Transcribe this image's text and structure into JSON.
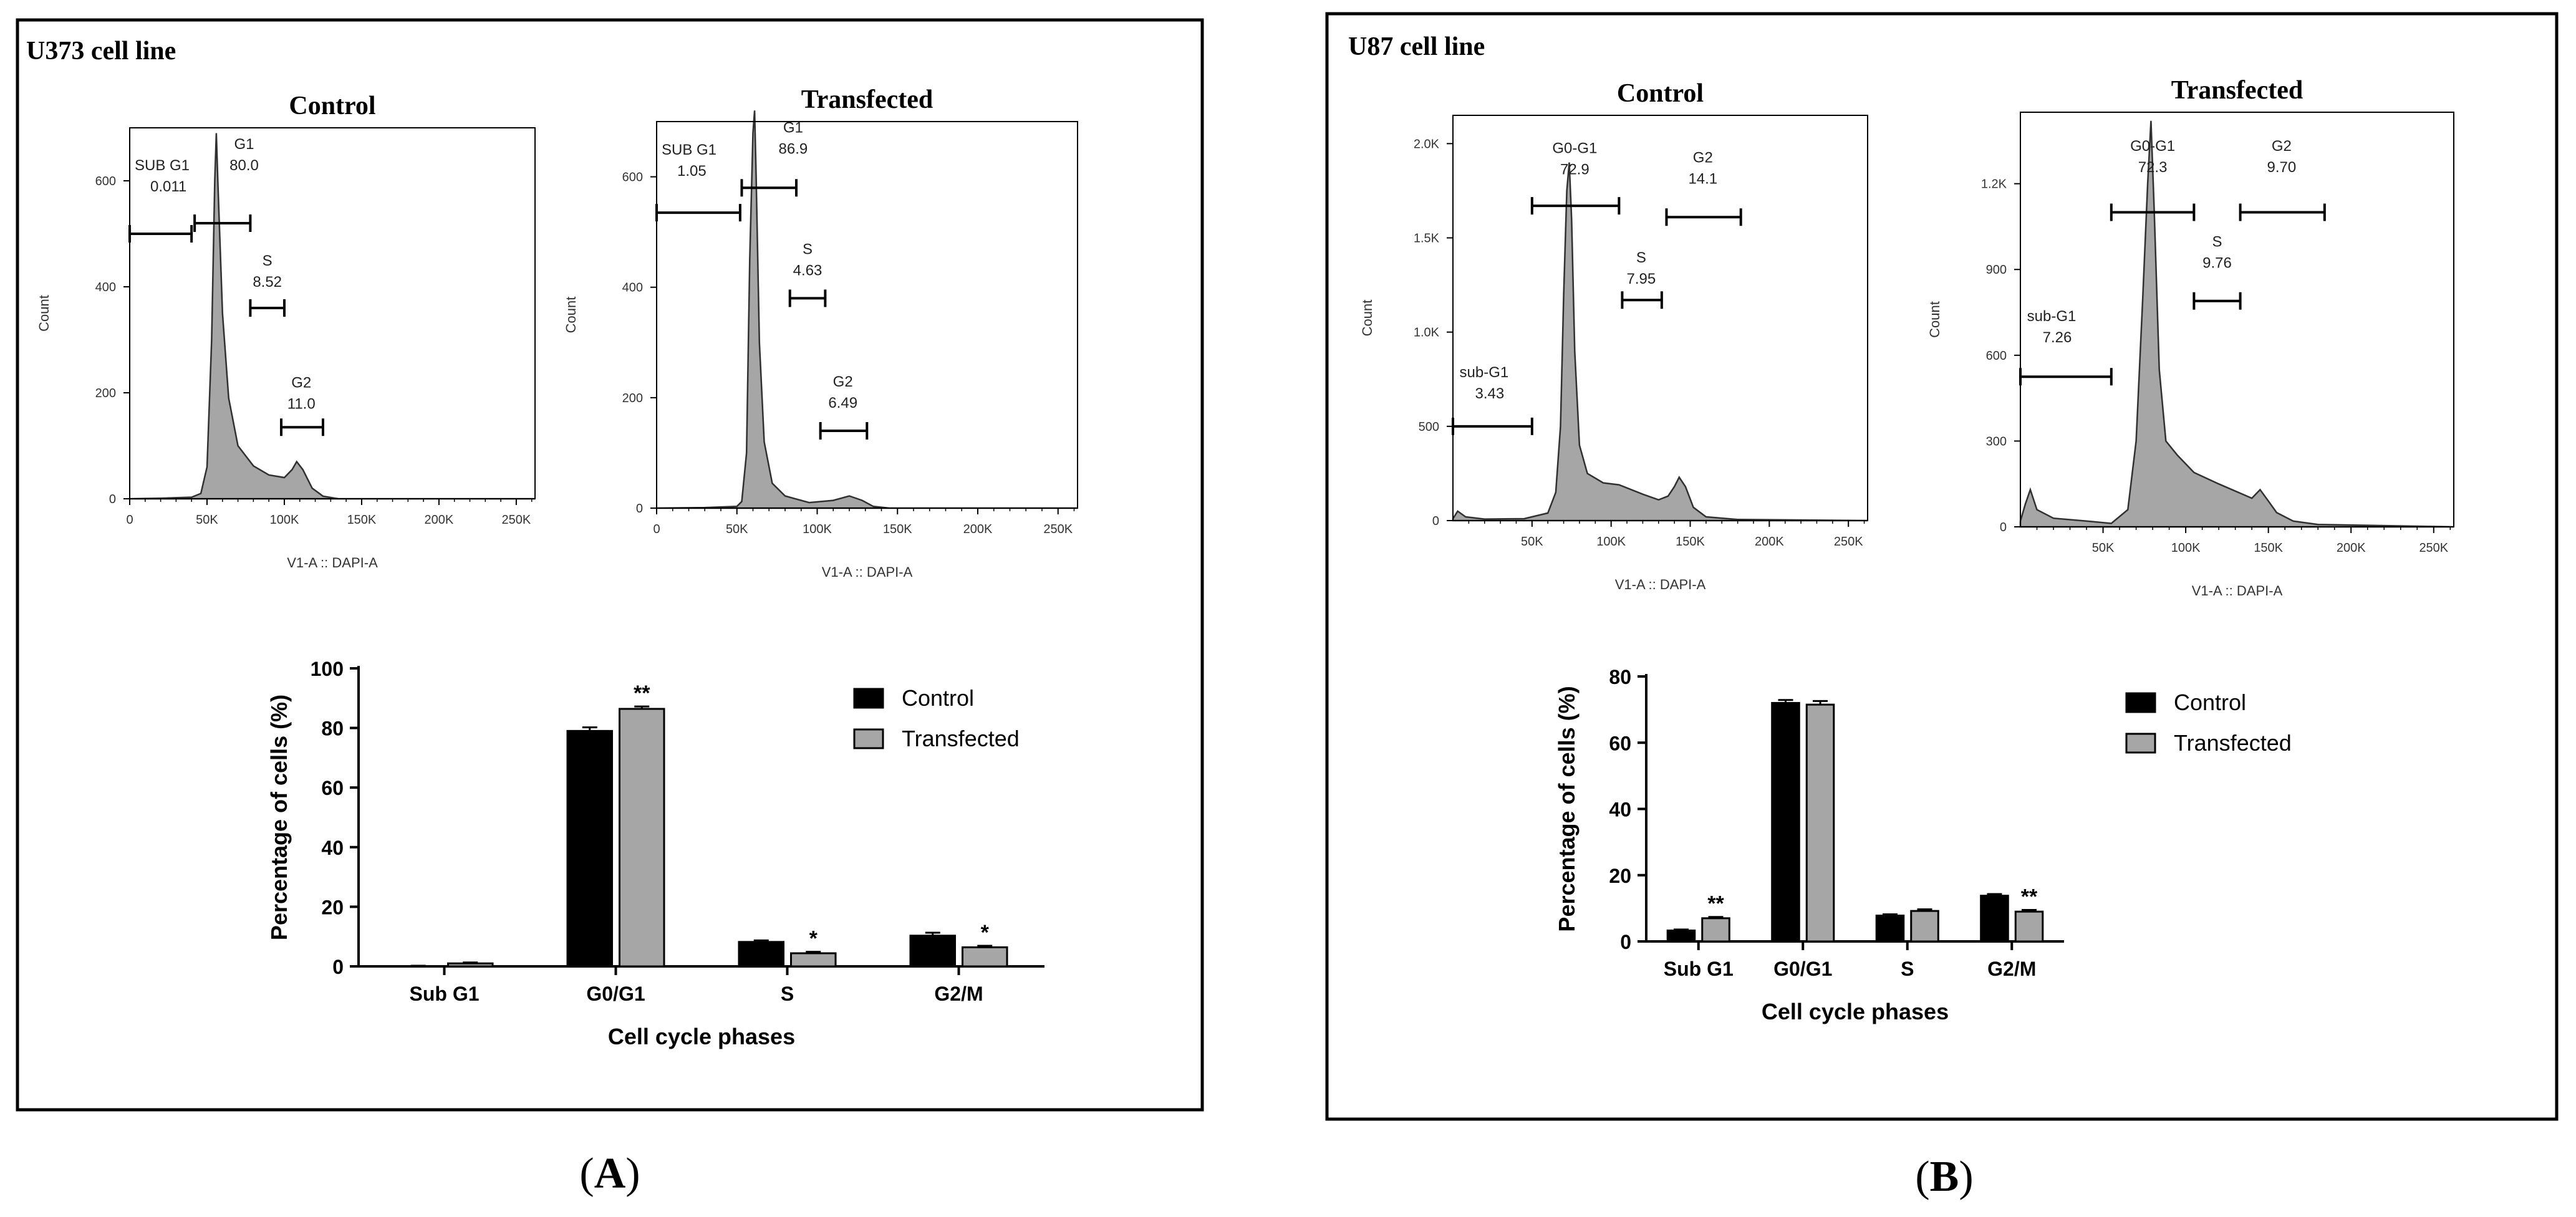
{
  "panels": [
    {
      "cell_line": "U373 cell line",
      "panel_letter": "A",
      "histograms": [
        {
          "title": "Control",
          "ylabel": "Count",
          "xlabel": "V1-A :: DAPI-A",
          "xlim": [
            0,
            262144
          ],
          "ylim": [
            0,
            700
          ],
          "xticks": [
            0,
            50000,
            100000,
            150000,
            200000,
            250000
          ],
          "xtick_labels": [
            "0",
            "50K",
            "100K",
            "150K",
            "200K",
            "250K"
          ],
          "yticks": [
            0,
            200,
            400,
            600
          ],
          "ytick_labels": [
            "0",
            "200",
            "400",
            "600"
          ],
          "curve": [
            [
              0,
              0
            ],
            [
              20000,
              1
            ],
            [
              40000,
              3
            ],
            [
              46000,
              10
            ],
            [
              50000,
              60
            ],
            [
              53000,
              300
            ],
            [
              55000,
              600
            ],
            [
              56000,
              690
            ],
            [
              57000,
              600
            ],
            [
              60000,
              350
            ],
            [
              64000,
              190
            ],
            [
              70000,
              100
            ],
            [
              80000,
              62
            ],
            [
              90000,
              45
            ],
            [
              100000,
              40
            ],
            [
              105000,
              55
            ],
            [
              108000,
              70
            ],
            [
              112000,
              55
            ],
            [
              118000,
              20
            ],
            [
              125000,
              5
            ],
            [
              135000,
              0
            ],
            [
              262144,
              0
            ]
          ],
          "gates": [
            {
              "name": "SUB G1",
              "value": "0.011",
              "x0": 0,
              "x1": 40000,
              "y": 500,
              "label_x": 0,
              "label_y": 620,
              "align": "left"
            },
            {
              "name": "G1",
              "value": "80.0",
              "x0": 42000,
              "x1": 78000,
              "y": 520,
              "label_x": 74000,
              "label_y": 660,
              "align": "center"
            },
            {
              "name": "S",
              "value": "8.52",
              "x0": 78000,
              "x1": 100000,
              "y": 360,
              "label_x": 89000,
              "label_y": 440,
              "align": "center"
            },
            {
              "name": "G2",
              "value": "11.0",
              "x0": 98000,
              "x1": 125000,
              "y": 135,
              "label_x": 111000,
              "label_y": 210,
              "align": "center"
            }
          ]
        },
        {
          "title": "Transfected",
          "ylabel": "Count",
          "xlabel": "V1-A :: DAPI-A",
          "xlim": [
            0,
            262144
          ],
          "ylim": [
            0,
            700
          ],
          "xticks": [
            0,
            50000,
            100000,
            150000,
            200000,
            250000
          ],
          "xtick_labels": [
            "0",
            "50K",
            "100K",
            "150K",
            "200K",
            "250K"
          ],
          "yticks": [
            0,
            200,
            400,
            600
          ],
          "ytick_labels": [
            "0",
            "200",
            "400",
            "600"
          ],
          "curve": [
            [
              0,
              0
            ],
            [
              30000,
              1
            ],
            [
              50000,
              3
            ],
            [
              53000,
              12
            ],
            [
              56000,
              100
            ],
            [
              58000,
              450
            ],
            [
              60000,
              680
            ],
            [
              61000,
              720
            ],
            [
              62000,
              600
            ],
            [
              64000,
              300
            ],
            [
              67000,
              120
            ],
            [
              72000,
              45
            ],
            [
              80000,
              22
            ],
            [
              95000,
              10
            ],
            [
              110000,
              14
            ],
            [
              120000,
              22
            ],
            [
              128000,
              14
            ],
            [
              135000,
              3
            ],
            [
              145000,
              0
            ],
            [
              262144,
              0
            ]
          ],
          "gates": [
            {
              "name": "SUB G1",
              "value": "1.05",
              "x0": 0,
              "x1": 52000,
              "y": 535,
              "label_x": 0,
              "label_y": 640,
              "align": "left"
            },
            {
              "name": "G1",
              "value": "86.9",
              "x0": 53000,
              "x1": 87000,
              "y": 580,
              "label_x": 85000,
              "label_y": 680,
              "align": "center"
            },
            {
              "name": "S",
              "value": "4.63",
              "x0": 83000,
              "x1": 105000,
              "y": 380,
              "label_x": 94000,
              "label_y": 460,
              "align": "center"
            },
            {
              "name": "G2",
              "value": "6.49",
              "x0": 102000,
              "x1": 131000,
              "y": 140,
              "label_x": 116000,
              "label_y": 220,
              "align": "center"
            }
          ]
        }
      ],
      "bar_chart": {
        "type": "bar",
        "xlabel": "Cell cycle phases",
        "ylabel": "Percentage of cells (%)",
        "categories": [
          "Sub G1",
          "G0/G1",
          "S",
          "G2/M"
        ],
        "ylim": [
          0,
          100
        ],
        "yticks": [
          0,
          20,
          40,
          60,
          80,
          100
        ],
        "series": [
          {
            "name": "Control",
            "values": [
              0.1,
              79.0,
              8.2,
              10.3
            ],
            "errors": [
              0.1,
              1.2,
              0.5,
              1.0
            ],
            "sig": [
              "",
              "",
              "",
              ""
            ]
          },
          {
            "name": "Transfected",
            "values": [
              1.0,
              86.4,
              4.4,
              6.4
            ],
            "errors": [
              0.3,
              0.8,
              0.5,
              0.5
            ],
            "sig": [
              "",
              "**",
              "*",
              "*"
            ]
          }
        ]
      }
    },
    {
      "cell_line": "U87 cell line",
      "panel_letter": "B",
      "histograms": [
        {
          "title": "Control",
          "ylabel": "Count",
          "xlabel": "V1-A :: DAPI-A",
          "xlim": [
            0,
            262144
          ],
          "ylim": [
            0,
            2150
          ],
          "xticks": [
            50000,
            100000,
            150000,
            200000,
            250000
          ],
          "xtick_labels": [
            "50K",
            "100K",
            "150K",
            "200K",
            "250K"
          ],
          "yticks": [
            0,
            500,
            1000,
            1500,
            2000
          ],
          "ytick_labels": [
            "0",
            "500",
            "1.0K",
            "1.5K",
            "2.0K"
          ],
          "curve": [
            [
              0,
              10
            ],
            [
              3000,
              50
            ],
            [
              8000,
              20
            ],
            [
              20000,
              8
            ],
            [
              45000,
              10
            ],
            [
              60000,
              40
            ],
            [
              65000,
              150
            ],
            [
              68000,
              500
            ],
            [
              70000,
              1200
            ],
            [
              72000,
              1750
            ],
            [
              73500,
              1900
            ],
            [
              75000,
              1600
            ],
            [
              77000,
              900
            ],
            [
              80000,
              400
            ],
            [
              85000,
              250
            ],
            [
              95000,
              200
            ],
            [
              105000,
              190
            ],
            [
              120000,
              140
            ],
            [
              130000,
              110
            ],
            [
              136000,
              130
            ],
            [
              140000,
              180
            ],
            [
              143000,
              230
            ],
            [
              147000,
              180
            ],
            [
              152000,
              70
            ],
            [
              160000,
              20
            ],
            [
              180000,
              6
            ],
            [
              262144,
              0
            ]
          ],
          "gates": [
            {
              "name": "sub-G1",
              "value": "3.43",
              "x0": 0,
              "x1": 50000,
              "y": 500,
              "label_x": 1000,
              "label_y": 760,
              "align": "left"
            },
            {
              "name": "G0-G1",
              "value": "72.9",
              "x0": 50000,
              "x1": 105000,
              "y": 1670,
              "label_x": 77000,
              "label_y": 1950,
              "align": "center"
            },
            {
              "name": "S",
              "value": "7.95",
              "x0": 107000,
              "x1": 132000,
              "y": 1170,
              "label_x": 119000,
              "label_y": 1370,
              "align": "center"
            },
            {
              "name": "G2",
              "value": "14.1",
              "x0": 135000,
              "x1": 182000,
              "y": 1610,
              "label_x": 158000,
              "label_y": 1900,
              "align": "center"
            }
          ]
        },
        {
          "title": "Transfected",
          "ylabel": "Count",
          "xlabel": "V1-A :: DAPI-A",
          "xlim": [
            0,
            262144
          ],
          "ylim": [
            0,
            1450
          ],
          "xticks": [
            50000,
            100000,
            150000,
            200000,
            250000
          ],
          "xtick_labels": [
            "50K",
            "100K",
            "150K",
            "200K",
            "250K"
          ],
          "yticks": [
            0,
            300,
            600,
            900,
            1200
          ],
          "ytick_labels": [
            "0",
            "300",
            "600",
            "900",
            "1.2K"
          ],
          "curve": [
            [
              0,
              20
            ],
            [
              3000,
              80
            ],
            [
              6000,
              130
            ],
            [
              10000,
              60
            ],
            [
              20000,
              30
            ],
            [
              40000,
              20
            ],
            [
              55000,
              12
            ],
            [
              65000,
              60
            ],
            [
              70000,
              300
            ],
            [
              74000,
              800
            ],
            [
              77000,
              1200
            ],
            [
              79000,
              1420
            ],
            [
              81000,
              1100
            ],
            [
              84000,
              550
            ],
            [
              88000,
              300
            ],
            [
              95000,
              250
            ],
            [
              105000,
              190
            ],
            [
              120000,
              150
            ],
            [
              140000,
              100
            ],
            [
              145000,
              130
            ],
            [
              150000,
              90
            ],
            [
              155000,
              50
            ],
            [
              165000,
              20
            ],
            [
              180000,
              8
            ],
            [
              262144,
              0
            ]
          ],
          "gates": [
            {
              "name": "sub-G1",
              "value": "7.26",
              "x0": 0,
              "x1": 55000,
              "y": 525,
              "label_x": 1000,
              "label_y": 720,
              "align": "left"
            },
            {
              "name": "G0-G1",
              "value": "72.3",
              "x0": 55000,
              "x1": 105000,
              "y": 1100,
              "label_x": 80000,
              "label_y": 1315,
              "align": "center"
            },
            {
              "name": "S",
              "value": "9.76",
              "x0": 105000,
              "x1": 133000,
              "y": 790,
              "label_x": 119000,
              "label_y": 980,
              "align": "center"
            },
            {
              "name": "G2",
              "value": "9.70",
              "x0": 133000,
              "x1": 184000,
              "y": 1100,
              "label_x": 158000,
              "label_y": 1315,
              "align": "center"
            }
          ]
        }
      ],
      "bar_chart": {
        "type": "bar",
        "xlabel": "Cell cycle phases",
        "ylabel": "Percentage of cells (%)",
        "categories": [
          "Sub G1",
          "G0/G1",
          "S",
          "G2/M"
        ],
        "ylim": [
          0,
          80
        ],
        "yticks": [
          0,
          20,
          40,
          60,
          80
        ],
        "series": [
          {
            "name": "Control",
            "values": [
              3.3,
              72.0,
              7.8,
              13.8
            ],
            "errors": [
              0.3,
              0.9,
              0.4,
              0.5
            ],
            "sig": [
              "",
              "",
              "",
              ""
            ]
          },
          {
            "name": "Transfected",
            "values": [
              7.0,
              71.5,
              9.2,
              9.0
            ],
            "errors": [
              0.4,
              1.1,
              0.5,
              0.5
            ],
            "sig": [
              "**",
              "",
              "",
              "**"
            ]
          }
        ]
      }
    }
  ],
  "colors": {
    "histogram_fill": "#a6a6a6",
    "histogram_line": "#303030",
    "control_bar": "#000000",
    "transfected_bar": "#a6a6a6",
    "frame": "#000000"
  }
}
